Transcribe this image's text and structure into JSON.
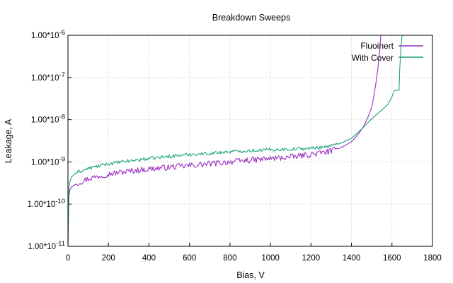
{
  "chart_data": {
    "type": "line",
    "title": "Breakdown Sweeps",
    "xlabel": "Bias, V",
    "ylabel": "Leakage, A",
    "xlim": [
      0,
      1800
    ],
    "ylim": [
      1e-11,
      1e-06
    ],
    "yscale": "log",
    "grid": true,
    "legend_position": "top-right",
    "x_ticks": [
      "0",
      "200",
      "400",
      "600",
      "800",
      "1000",
      "1200",
      "1400",
      "1600",
      "1800"
    ],
    "x_tick_values": [
      0,
      200,
      400,
      600,
      800,
      1000,
      1200,
      1400,
      1600,
      1800
    ],
    "y_ticks": [
      "1.00*10^-11",
      "1.00*10^-10",
      "1.00*10^-9",
      "1.00*10^-8",
      "1.00*10^-7",
      "1.00*10^-6"
    ],
    "y_tick_values": [
      1e-11,
      1e-10,
      1e-09,
      1e-08,
      1e-07,
      1e-06
    ],
    "series": [
      {
        "name": "Fluoinert",
        "color": "#9b30c0",
        "x": [
          0,
          5,
          10,
          20,
          40,
          100,
          200,
          300,
          400,
          500,
          600,
          700,
          800,
          900,
          1000,
          1100,
          1200,
          1300,
          1350,
          1400,
          1420,
          1440,
          1460,
          1480,
          1500,
          1510,
          1520,
          1530,
          1540,
          1545,
          1550
        ],
        "y": [
          1e-11,
          1.5e-10,
          2.2e-10,
          2.6e-10,
          3e-10,
          4e-10,
          5.2e-10,
          6e-10,
          6.8e-10,
          7.5e-10,
          8.2e-10,
          9e-10,
          1e-09,
          1.1e-09,
          1.2e-09,
          1.3e-09,
          1.5e-09,
          1.8e-09,
          2.2e-09,
          3e-09,
          3.8e-09,
          5e-09,
          7e-09,
          1.1e-08,
          2e-08,
          3.5e-08,
          7e-08,
          1.6e-07,
          4.5e-07,
          1e-06,
          2e-06
        ]
      },
      {
        "name": "With Cover",
        "color": "#1aa37f",
        "x": [
          0,
          5,
          10,
          20,
          40,
          100,
          200,
          300,
          400,
          500,
          600,
          700,
          800,
          900,
          1000,
          1100,
          1200,
          1300,
          1350,
          1400,
          1450,
          1500,
          1550,
          1580,
          1600,
          1610,
          1620,
          1625,
          1635,
          1638,
          1645,
          1650
        ],
        "y": [
          1e-11,
          2.5e-10,
          3.5e-10,
          4.5e-10,
          5.5e-10,
          7e-10,
          9e-10,
          1.05e-09,
          1.2e-09,
          1.35e-09,
          1.5e-09,
          1.6e-09,
          1.75e-09,
          1.85e-09,
          1.95e-09,
          2e-09,
          2.1e-09,
          2.4e-09,
          2.8e-09,
          3.6e-09,
          6e-09,
          1.05e-08,
          1.7e-08,
          2.3e-08,
          3.5e-08,
          4.8e-08,
          5e-08,
          5e-08,
          5e-08,
          1.5e-07,
          6e-07,
          2e-06
        ]
      }
    ]
  }
}
